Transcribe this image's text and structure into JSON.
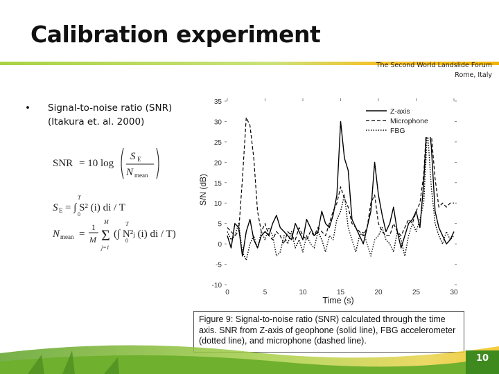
{
  "slide": {
    "title": "Calibration experiment",
    "forum_line1": "The Second World Landslide Forum",
    "forum_line2": "Rome, Italy",
    "bullet_symbol": "•",
    "bullet_text": "Signal-to-noise ratio (SNR) (Itakura et. al. 2000)",
    "caption": "Figure 9: Signal-to-noise ratio (SNR) calculated through the time axis. SNR from Z-axis of geophone (solid line), FBG accelerometer (dotted line), and microphone (dashed line).",
    "page_number": "10"
  },
  "formulas": {
    "snr_lhs": "SNR",
    "snr_eq": "= 10 log",
    "se_sym": "S",
    "se_sub": "E",
    "n_sym": "N",
    "n_sub": "mean",
    "se_lhs": "S",
    "se_lhs_sub": "E",
    "se_rhs": "= ∫ S² (i) di / T",
    "se_int_top": "T",
    "se_int_bot": "0",
    "nm_lhs": "N",
    "nm_lhs_sub": "mean",
    "nm_frac_top": "1",
    "nm_frac_bot": "M",
    "nm_sum_top": "M",
    "nm_sum_bot": "j=1",
    "nm_rhs": "(∫ N²ⱼ (i) di / T)",
    "nm_int_top": "T",
    "nm_int_bot": "0"
  },
  "chart_data": {
    "type": "line",
    "xlabel": "Time (s)",
    "ylabel": "S/N (dB)",
    "xlim": [
      0,
      30
    ],
    "ylim": [
      -10,
      35
    ],
    "x_ticks": [
      "0",
      "5",
      "10",
      "15",
      "20",
      "25",
      "30"
    ],
    "y_ticks": [
      "-10",
      "-5",
      "0",
      "5",
      "10",
      "15",
      "20",
      "25",
      "30",
      "35"
    ],
    "x_tick_values": [
      0,
      5,
      10,
      15,
      20,
      25,
      30
    ],
    "y_tick_values": [
      -10,
      -5,
      0,
      5,
      10,
      15,
      20,
      25,
      30,
      35
    ],
    "legend_position": "top-right",
    "series": [
      {
        "name": "Z-axis",
        "style": "solid",
        "color": "#000000",
        "x": [
          0,
          0.5,
          1,
          1.5,
          2,
          2.5,
          3,
          3.5,
          4,
          4.5,
          5,
          5.5,
          6,
          6.5,
          7,
          7.5,
          8,
          8.5,
          9,
          9.5,
          10,
          10.5,
          11,
          11.5,
          12,
          12.5,
          13,
          13.5,
          14,
          14.5,
          15,
          15.5,
          16,
          16.5,
          17,
          17.5,
          18,
          18.5,
          19,
          19.5,
          20,
          20.5,
          21,
          21.5,
          22,
          22.5,
          23,
          23.5,
          24,
          24.5,
          25,
          25.5,
          26,
          26.5,
          27,
          27.5,
          28,
          28.5,
          29,
          29.5,
          30
        ],
        "y": [
          2,
          -1,
          5,
          4,
          -3,
          3,
          6,
          1,
          -1,
          2,
          3,
          2,
          5,
          7,
          4,
          3,
          2,
          1,
          5,
          3,
          1,
          6,
          4,
          2,
          3,
          8,
          5,
          4,
          7,
          12,
          30,
          21,
          18,
          6,
          4,
          2,
          0,
          4,
          8,
          20,
          12,
          7,
          3,
          5,
          9,
          3,
          -1,
          2,
          5,
          6,
          8,
          4,
          15,
          32,
          24,
          8,
          4,
          2,
          0,
          1,
          3
        ]
      },
      {
        "name": "Microphone",
        "style": "dashed",
        "color": "#000000",
        "x": [
          0,
          0.5,
          1,
          1.5,
          2,
          2.5,
          3,
          3.5,
          4,
          4.5,
          5,
          5.5,
          6,
          6.5,
          7,
          7.5,
          8,
          8.5,
          9,
          9.5,
          10,
          10.5,
          11,
          11.5,
          12,
          12.5,
          13,
          13.5,
          14,
          14.5,
          15,
          15.5,
          16,
          16.5,
          17,
          17.5,
          18,
          18.5,
          19,
          19.5,
          20,
          20.5,
          21,
          21.5,
          22,
          22.5,
          23,
          23.5,
          24,
          24.5,
          25,
          25.5,
          26,
          26.5,
          27,
          27.5,
          28,
          28.5,
          29,
          29.5,
          30
        ],
        "y": [
          4,
          3,
          2,
          3,
          16,
          31,
          29,
          21,
          8,
          3,
          5,
          2,
          1,
          3,
          2,
          0,
          3,
          2,
          1,
          4,
          2,
          1,
          3,
          2,
          4,
          3,
          2,
          5,
          8,
          10,
          14,
          11,
          9,
          5,
          4,
          3,
          2,
          4,
          10,
          12,
          5,
          3,
          2,
          2,
          5,
          3,
          2,
          4,
          6,
          5,
          8,
          10,
          17,
          33,
          27,
          16,
          9,
          10,
          9,
          10,
          10
        ]
      },
      {
        "name": "FBG",
        "style": "dotted",
        "color": "#000000",
        "x": [
          0,
          0.5,
          1,
          1.5,
          2,
          2.5,
          3,
          3.5,
          4,
          4.5,
          5,
          5.5,
          6,
          6.5,
          7,
          7.5,
          8,
          8.5,
          9,
          9.5,
          10,
          10.5,
          11,
          11.5,
          12,
          12.5,
          13,
          13.5,
          14,
          14.5,
          15,
          15.5,
          16,
          16.5,
          17,
          17.5,
          18,
          18.5,
          19,
          19.5,
          20,
          20.5,
          21,
          21.5,
          22,
          22.5,
          23,
          23.5,
          24,
          24.5,
          25,
          25.5,
          26,
          26.5,
          27,
          27.5,
          28,
          28.5,
          29,
          29.5,
          30
        ],
        "y": [
          3,
          1,
          2,
          5,
          -2,
          -4,
          0,
          2,
          -1,
          3,
          1,
          4,
          2,
          -3,
          -2,
          2,
          0,
          3,
          -1,
          1,
          -2,
          2,
          0,
          -1,
          3,
          1,
          -2,
          2,
          1,
          6,
          8,
          12,
          4,
          1,
          -2,
          2,
          3,
          0,
          -3,
          1,
          2,
          4,
          1,
          0,
          -2,
          3,
          1,
          -3,
          2,
          5,
          3,
          6,
          10,
          28,
          14,
          5,
          2,
          0,
          3,
          1,
          2
        ]
      }
    ]
  },
  "colors": {
    "title_rule_start": "#a9d244",
    "title_rule_end": "#f0b400",
    "footer_green": "#7cb82f",
    "footer_yellow": "#f2c21b",
    "page_badge": "#3f8a1f"
  }
}
